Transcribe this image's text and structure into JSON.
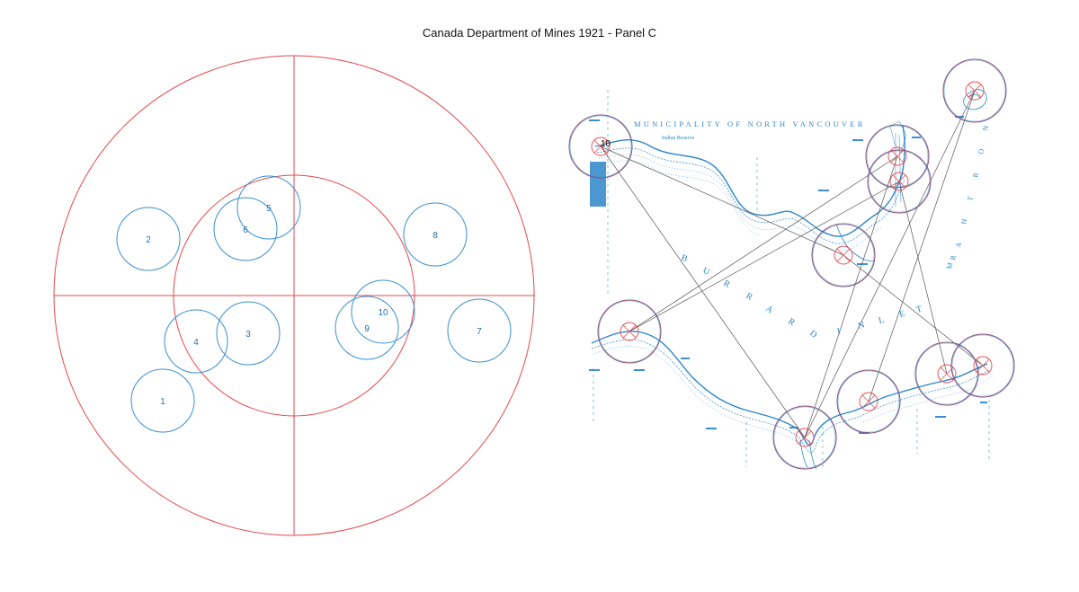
{
  "title": "Canada Department of Mines 1921 - Panel C",
  "colors": {
    "reference": "#e8474c",
    "detection": "#3a8fd0",
    "match": "#8a4f78",
    "link": "#555555",
    "map_ink": "#2b86c9"
  },
  "left_panel": {
    "circles": [
      {
        "label": "1"
      },
      {
        "label": "2"
      },
      {
        "label": "3"
      },
      {
        "label": "4"
      },
      {
        "label": "5"
      },
      {
        "label": "6"
      },
      {
        "label": "7"
      },
      {
        "label": "8"
      },
      {
        "label": "9"
      },
      {
        "label": "10"
      }
    ]
  },
  "map": {
    "municipality": "MUNICIPALITY OF NORTH VANCOUVER",
    "indian_reserve": "Indian Reserve",
    "burrard_letters": [
      "B",
      "U",
      "R",
      "R",
      "A",
      "R",
      "D"
    ],
    "inlet_letters": [
      "I",
      "N",
      "L",
      "E",
      "T"
    ],
    "north_arm_letters": [
      "N",
      "O",
      "R",
      "T",
      "H",
      "A",
      "R",
      "M"
    ],
    "feature_label": "10"
  }
}
